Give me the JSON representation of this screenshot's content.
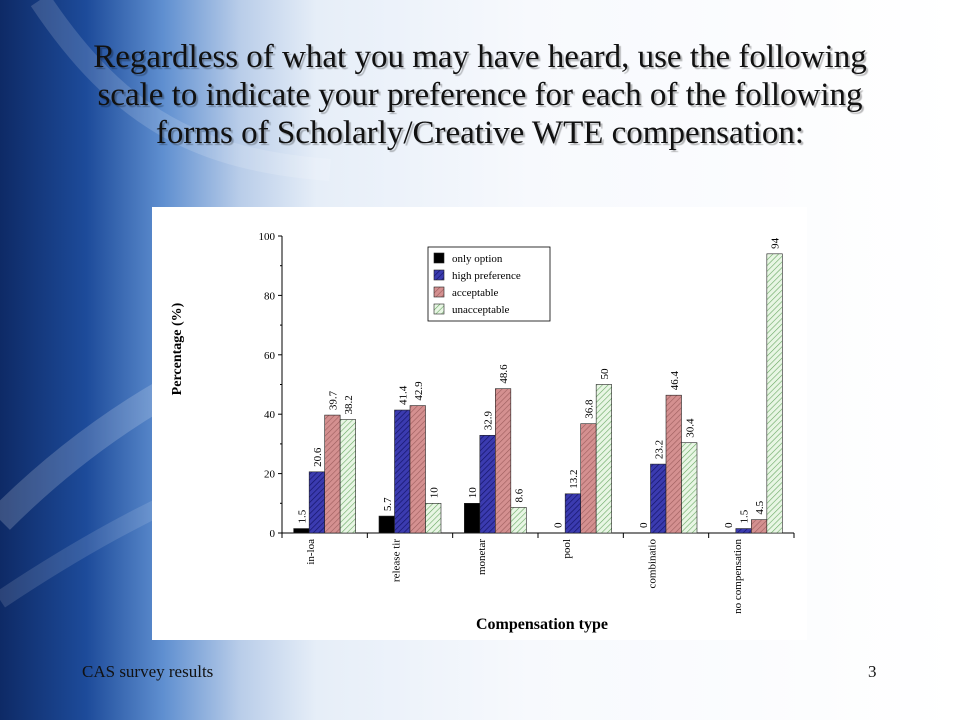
{
  "slide": {
    "title": "Regardless of what you may have heard, use the following scale to indicate your preference for each of the following forms of Scholarly/Creative WTE compensation:",
    "footer_left": "CAS survey results",
    "page_number": "3"
  },
  "chart_data": {
    "type": "bar",
    "title": "",
    "xlabel": "Compensation type",
    "ylabel": "Percentage (%)",
    "ylim": [
      0,
      100
    ],
    "yticks": [
      0,
      20,
      40,
      60,
      80,
      100
    ],
    "categories": [
      "in-loa",
      "release tir",
      "monetar",
      "pool",
      "combinatio",
      "no compensation"
    ],
    "legend_position": "top-center",
    "series": [
      {
        "name": "only option",
        "color": "#000000",
        "pattern": "solid",
        "values": [
          1.5,
          5.7,
          10,
          0,
          0,
          0
        ],
        "labels": [
          "1.5",
          "5.7",
          "10",
          "0",
          "0",
          "0"
        ]
      },
      {
        "name": "high preference",
        "color": "#3333a6",
        "pattern": "hatch",
        "values": [
          20.6,
          41.4,
          32.9,
          13.2,
          23.2,
          1.5
        ],
        "labels": [
          "20.6",
          "41.4",
          "32.9",
          "13.2",
          "23.2",
          "1.5"
        ]
      },
      {
        "name": "acceptable",
        "color": "#cc8080",
        "pattern": "hatch",
        "values": [
          39.7,
          42.9,
          48.6,
          36.8,
          46.4,
          4.5
        ],
        "labels": [
          "39.7",
          "42.9",
          "48.6",
          "36.8",
          "46.4",
          "4.5"
        ]
      },
      {
        "name": "unacceptable",
        "color": "#b6e0b0",
        "pattern": "hatch",
        "values": [
          38.2,
          10,
          8.6,
          50,
          30.4,
          94
        ],
        "labels": [
          "38.2",
          "10",
          "8.6",
          "50",
          "30.4",
          "94"
        ]
      }
    ]
  }
}
